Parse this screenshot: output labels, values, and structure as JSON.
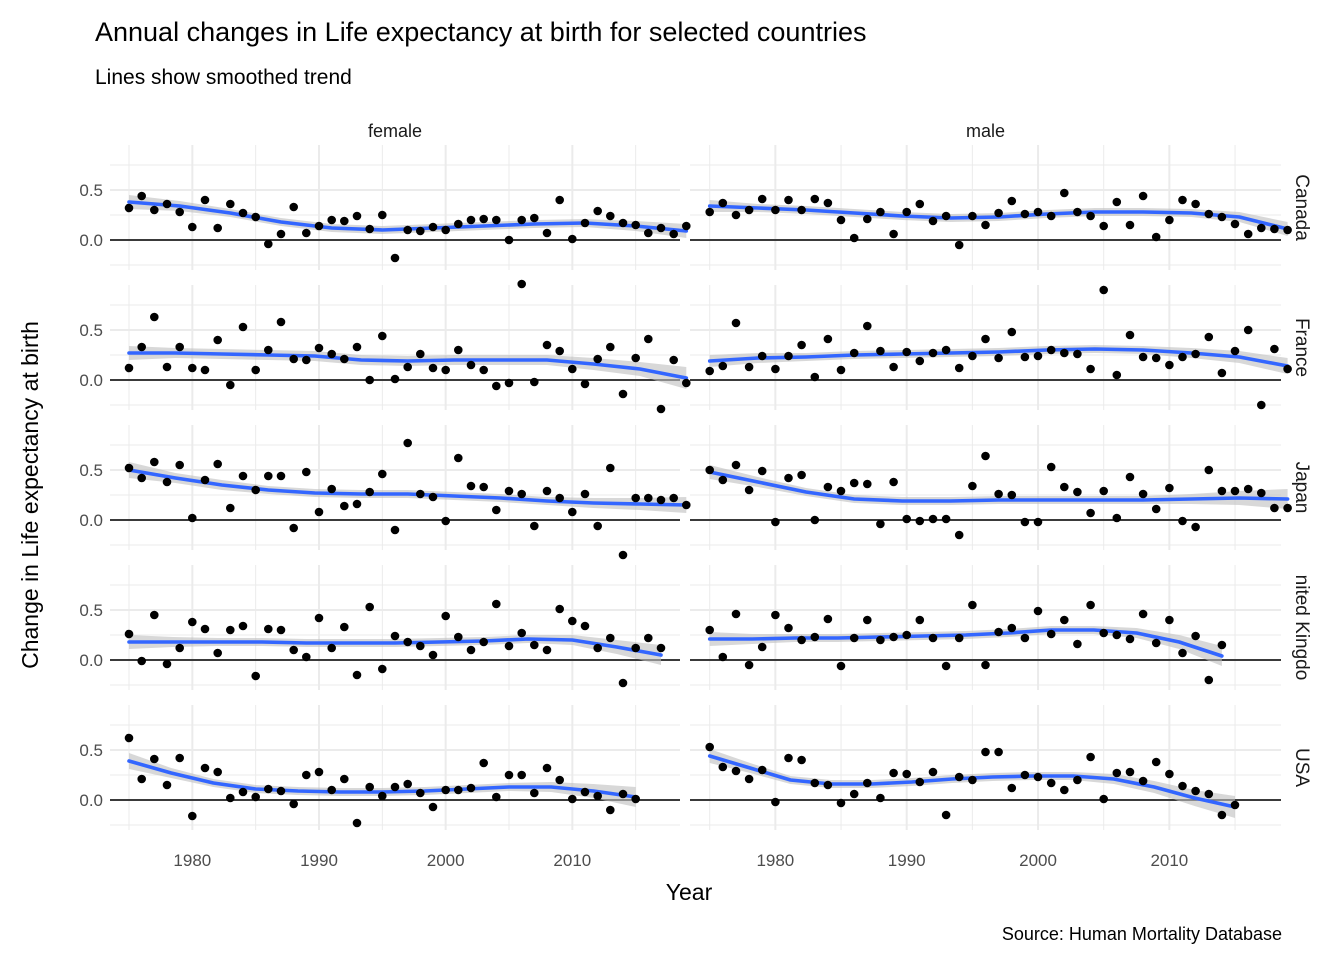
{
  "chart_data": {
    "type": "scatter",
    "title": "Annual changes in Life expectancy at birth for selected countries",
    "subtitle": "Lines show smoothed trend",
    "xlabel": "Year",
    "ylabel": "Change in Life expectancy at birth",
    "caption": "Source: Human Mortality Database",
    "columns": [
      "female",
      "male"
    ],
    "rows": [
      "Canada",
      "France",
      "Japan",
      "United Kingdom",
      "USA"
    ],
    "row_strip_labels": [
      "Canada",
      "France",
      "Japan",
      "nited Kingdo",
      "USA"
    ],
    "xlim": [
      1973.5,
      2018.5
    ],
    "ylim": [
      -0.3,
      0.95
    ],
    "x_ticks": [
      1980,
      1990,
      2000,
      2010
    ],
    "y_ticks": [
      0.0,
      0.5
    ],
    "y_tick_labels": [
      "0.0",
      "0.5"
    ],
    "x_start": 1975,
    "reference_line_y": 0,
    "colors": {
      "points": "#000000",
      "trend": "#3366FF",
      "band": "#BEBEBE",
      "grid": "#EBEBEB",
      "zero_line": "#000000"
    },
    "panels": [
      {
        "row": "Canada",
        "sex": "female",
        "values": [
          0.32,
          0.44,
          0.3,
          0.36,
          0.28,
          0.13,
          0.4,
          0.12,
          0.36,
          0.27,
          0.23,
          -0.04,
          0.06,
          0.33,
          0.07,
          0.14,
          0.2,
          0.19,
          0.24,
          0.11,
          0.25,
          -0.18,
          0.1,
          0.09,
          0.13,
          0.1,
          0.16,
          0.2,
          0.21,
          0.2,
          0.0,
          0.2,
          0.22,
          0.07,
          0.4,
          0.01,
          0.17,
          0.29,
          0.24,
          0.17,
          0.15,
          0.07,
          0.12,
          0.06,
          0.14
        ],
        "trend": [
          0.38,
          0.34,
          0.27,
          0.18,
          0.12,
          0.1,
          0.12,
          0.14,
          0.16,
          0.17,
          0.14,
          0.09
        ],
        "band": [
          0.07,
          0.05,
          0.04,
          0.04,
          0.04,
          0.04,
          0.04,
          0.04,
          0.04,
          0.04,
          0.05,
          0.07
        ]
      },
      {
        "row": "Canada",
        "sex": "male",
        "values": [
          0.28,
          0.37,
          0.25,
          0.3,
          0.41,
          0.3,
          0.4,
          0.3,
          0.41,
          0.37,
          0.2,
          0.02,
          0.21,
          0.28,
          0.06,
          0.28,
          0.36,
          0.19,
          0.24,
          -0.05,
          0.24,
          0.15,
          0.27,
          0.39,
          0.26,
          0.28,
          0.24,
          0.47,
          0.28,
          0.24,
          0.14,
          0.38,
          0.15,
          0.44,
          0.03,
          0.2,
          0.4,
          0.36,
          0.26,
          0.23,
          0.16,
          0.06,
          0.12,
          0.11,
          0.1
        ],
        "trend": [
          0.34,
          0.32,
          0.3,
          0.27,
          0.24,
          0.22,
          0.23,
          0.26,
          0.28,
          0.28,
          0.27,
          0.23,
          0.11
        ],
        "band": [
          0.06,
          0.04,
          0.04,
          0.04,
          0.04,
          0.04,
          0.04,
          0.04,
          0.04,
          0.04,
          0.04,
          0.05,
          0.07
        ]
      },
      {
        "row": "France",
        "sex": "female",
        "values": [
          0.12,
          0.33,
          0.63,
          0.13,
          0.33,
          0.12,
          0.1,
          0.4,
          -0.05,
          0.53,
          0.1,
          0.3,
          0.58,
          0.21,
          0.2,
          0.32,
          0.26,
          0.21,
          0.33,
          0.0,
          0.44,
          0.01,
          0.13,
          0.26,
          0.12,
          0.1,
          0.3,
          0.15,
          0.1,
          -0.06,
          -0.03,
          0.96,
          -0.02,
          0.35,
          0.29,
          0.11,
          -0.04,
          0.21,
          0.33,
          -0.14,
          0.22,
          0.41,
          -0.29,
          0.2,
          -0.03
        ],
        "trend": [
          0.27,
          0.27,
          0.26,
          0.25,
          0.24,
          0.2,
          0.19,
          0.2,
          0.2,
          0.2,
          0.16,
          0.11,
          0.02
        ],
        "band": [
          0.07,
          0.05,
          0.05,
          0.05,
          0.05,
          0.05,
          0.05,
          0.05,
          0.05,
          0.05,
          0.06,
          0.07,
          0.11
        ]
      },
      {
        "row": "France",
        "sex": "male",
        "values": [
          0.09,
          0.14,
          0.57,
          0.13,
          0.24,
          0.11,
          0.24,
          0.35,
          0.03,
          0.41,
          0.1,
          0.27,
          0.54,
          0.29,
          0.13,
          0.28,
          0.19,
          0.27,
          0.3,
          0.12,
          0.24,
          0.41,
          0.22,
          0.48,
          0.23,
          0.24,
          0.3,
          0.27,
          0.26,
          0.11,
          0.9,
          0.05,
          0.45,
          0.23,
          0.22,
          0.15,
          0.23,
          0.26,
          0.43,
          0.07,
          0.29,
          0.5,
          -0.25,
          0.31,
          0.11
        ],
        "trend": [
          0.19,
          0.22,
          0.23,
          0.25,
          0.26,
          0.27,
          0.28,
          0.3,
          0.31,
          0.3,
          0.27,
          0.23,
          0.14
        ],
        "band": [
          0.06,
          0.05,
          0.04,
          0.04,
          0.04,
          0.04,
          0.04,
          0.04,
          0.04,
          0.04,
          0.05,
          0.06,
          0.08
        ]
      },
      {
        "row": "Japan",
        "sex": "female",
        "values": [
          0.52,
          0.42,
          0.58,
          0.38,
          0.55,
          0.02,
          0.4,
          0.56,
          0.12,
          0.44,
          0.3,
          0.44,
          0.44,
          -0.08,
          0.48,
          0.08,
          0.31,
          0.14,
          0.16,
          0.28,
          0.46,
          -0.1,
          0.77,
          0.26,
          0.23,
          -0.01,
          0.62,
          0.34,
          0.33,
          0.1,
          0.29,
          0.26,
          -0.06,
          0.29,
          0.22,
          0.08,
          0.26,
          -0.06,
          0.52,
          -0.35,
          0.22,
          0.22,
          0.2,
          0.22,
          0.15
        ],
        "trend": [
          0.5,
          0.42,
          0.35,
          0.3,
          0.27,
          0.26,
          0.26,
          0.24,
          0.22,
          0.19,
          0.17,
          0.16,
          0.15
        ],
        "band": [
          0.08,
          0.05,
          0.05,
          0.04,
          0.04,
          0.04,
          0.04,
          0.04,
          0.04,
          0.04,
          0.05,
          0.06,
          0.08
        ]
      },
      {
        "row": "Japan",
        "sex": "male",
        "values": [
          0.5,
          0.4,
          0.55,
          0.3,
          0.49,
          -0.02,
          0.42,
          0.45,
          0.0,
          0.33,
          0.29,
          0.37,
          0.36,
          -0.04,
          0.38,
          0.01,
          -0.01,
          0.01,
          0.01,
          -0.15,
          0.34,
          0.64,
          0.26,
          0.25,
          -0.02,
          -0.02,
          0.53,
          0.33,
          0.28,
          0.07,
          0.29,
          0.02,
          0.43,
          0.26,
          0.11,
          0.32,
          -0.01,
          -0.07,
          0.5,
          0.29,
          0.29,
          0.31,
          0.27,
          0.12,
          0.12
        ],
        "trend": [
          0.48,
          0.38,
          0.28,
          0.21,
          0.19,
          0.19,
          0.2,
          0.2,
          0.2,
          0.2,
          0.21,
          0.22,
          0.21
        ],
        "band": [
          0.07,
          0.05,
          0.04,
          0.04,
          0.04,
          0.04,
          0.04,
          0.04,
          0.04,
          0.04,
          0.05,
          0.07,
          0.1
        ]
      },
      {
        "row": "United Kingdom",
        "sex": "female",
        "values": [
          0.26,
          -0.01,
          0.45,
          -0.04,
          0.12,
          0.38,
          0.31,
          0.07,
          0.3,
          0.34,
          -0.16,
          0.31,
          0.3,
          0.1,
          0.03,
          0.42,
          0.12,
          0.33,
          -0.15,
          0.53,
          -0.09,
          0.24,
          0.18,
          0.14,
          0.05,
          0.44,
          0.23,
          0.1,
          0.18,
          0.56,
          0.14,
          0.27,
          0.15,
          0.1,
          0.51,
          0.39,
          0.34,
          0.12,
          0.22,
          -0.23,
          0.12,
          0.22,
          0.12
        ],
        "trend": [
          0.18,
          0.18,
          0.18,
          0.18,
          0.17,
          0.17,
          0.17,
          0.18,
          0.19,
          0.21,
          0.2,
          0.13,
          0.05
        ],
        "band": [
          0.07,
          0.05,
          0.04,
          0.04,
          0.04,
          0.04,
          0.04,
          0.04,
          0.04,
          0.04,
          0.05,
          0.07,
          0.1
        ]
      },
      {
        "row": "United Kingdom",
        "sex": "male",
        "values": [
          0.3,
          0.03,
          0.46,
          -0.05,
          0.13,
          0.45,
          0.32,
          0.2,
          0.23,
          0.41,
          -0.06,
          0.22,
          0.4,
          0.2,
          0.23,
          0.25,
          0.4,
          0.22,
          -0.06,
          0.22,
          0.55,
          -0.05,
          0.28,
          0.32,
          0.22,
          0.49,
          0.26,
          0.4,
          0.16,
          0.55,
          0.27,
          0.25,
          0.21,
          0.46,
          0.17,
          0.4,
          0.07,
          0.24,
          -0.2,
          0.15
        ],
        "trend": [
          0.21,
          0.21,
          0.22,
          0.22,
          0.23,
          0.24,
          0.25,
          0.27,
          0.3,
          0.3,
          0.27,
          0.18,
          0.04
        ],
        "band": [
          0.07,
          0.05,
          0.04,
          0.04,
          0.04,
          0.04,
          0.04,
          0.04,
          0.04,
          0.04,
          0.05,
          0.07,
          0.1
        ]
      },
      {
        "row": "USA",
        "sex": "female",
        "values": [
          0.62,
          0.21,
          0.41,
          0.15,
          0.42,
          -0.16,
          0.32,
          0.28,
          0.02,
          0.08,
          0.03,
          0.11,
          0.09,
          -0.04,
          0.25,
          0.28,
          0.1,
          0.21,
          -0.23,
          0.13,
          0.04,
          0.13,
          0.16,
          0.07,
          -0.07,
          0.1,
          0.1,
          0.12,
          0.37,
          0.03,
          0.25,
          0.25,
          0.07,
          0.32,
          0.2,
          0.01,
          0.08,
          0.04,
          -0.1,
          0.06,
          0.01
        ],
        "trend": [
          0.39,
          0.27,
          0.17,
          0.11,
          0.09,
          0.08,
          0.08,
          0.09,
          0.11,
          0.13,
          0.13,
          0.09,
          0.03
        ],
        "band": [
          0.08,
          0.05,
          0.04,
          0.04,
          0.04,
          0.04,
          0.04,
          0.04,
          0.04,
          0.04,
          0.05,
          0.07,
          0.1
        ]
      },
      {
        "row": "USA",
        "sex": "male",
        "values": [
          0.53,
          0.33,
          0.29,
          0.21,
          0.3,
          -0.02,
          0.42,
          0.4,
          0.17,
          0.15,
          -0.03,
          0.06,
          0.17,
          0.02,
          0.27,
          0.26,
          0.18,
          0.28,
          -0.15,
          0.23,
          0.2,
          0.48,
          0.48,
          0.12,
          0.25,
          0.23,
          0.17,
          0.1,
          0.2,
          0.43,
          0.01,
          0.27,
          0.28,
          0.19,
          0.38,
          0.26,
          0.14,
          0.09,
          0.06,
          -0.15,
          -0.05
        ],
        "trend": [
          0.44,
          0.32,
          0.2,
          0.16,
          0.16,
          0.18,
          0.21,
          0.23,
          0.24,
          0.24,
          0.21,
          0.13,
          0.02,
          -0.07
        ],
        "band": [
          0.07,
          0.05,
          0.04,
          0.04,
          0.04,
          0.04,
          0.04,
          0.04,
          0.04,
          0.04,
          0.05,
          0.06,
          0.08,
          0.11
        ]
      }
    ]
  }
}
